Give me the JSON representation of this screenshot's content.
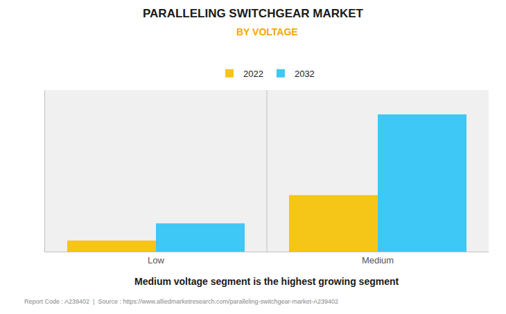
{
  "chart_data": {
    "type": "bar",
    "title": "PARALLELING SWITCHGEAR MARKET",
    "subtitle": "BY VOLTAGE",
    "categories": [
      "Low",
      "Medium"
    ],
    "series": [
      {
        "name": "2022",
        "color": "#F5C518",
        "values": [
          0.55,
          2.8
        ]
      },
      {
        "name": "2032",
        "color": "#3DC8F5",
        "values": [
          1.4,
          6.8
        ]
      }
    ],
    "ylim": [
      0,
      8
    ],
    "grid": false,
    "legend": "top",
    "tick_labels": "x",
    "annotations": [
      "Medium voltage segment is the highest growing segment",
      "Report Code : A239402  |  Source : https://www.alliedmarketresearch.com/paralleling-switchgear-market-A239402"
    ]
  }
}
